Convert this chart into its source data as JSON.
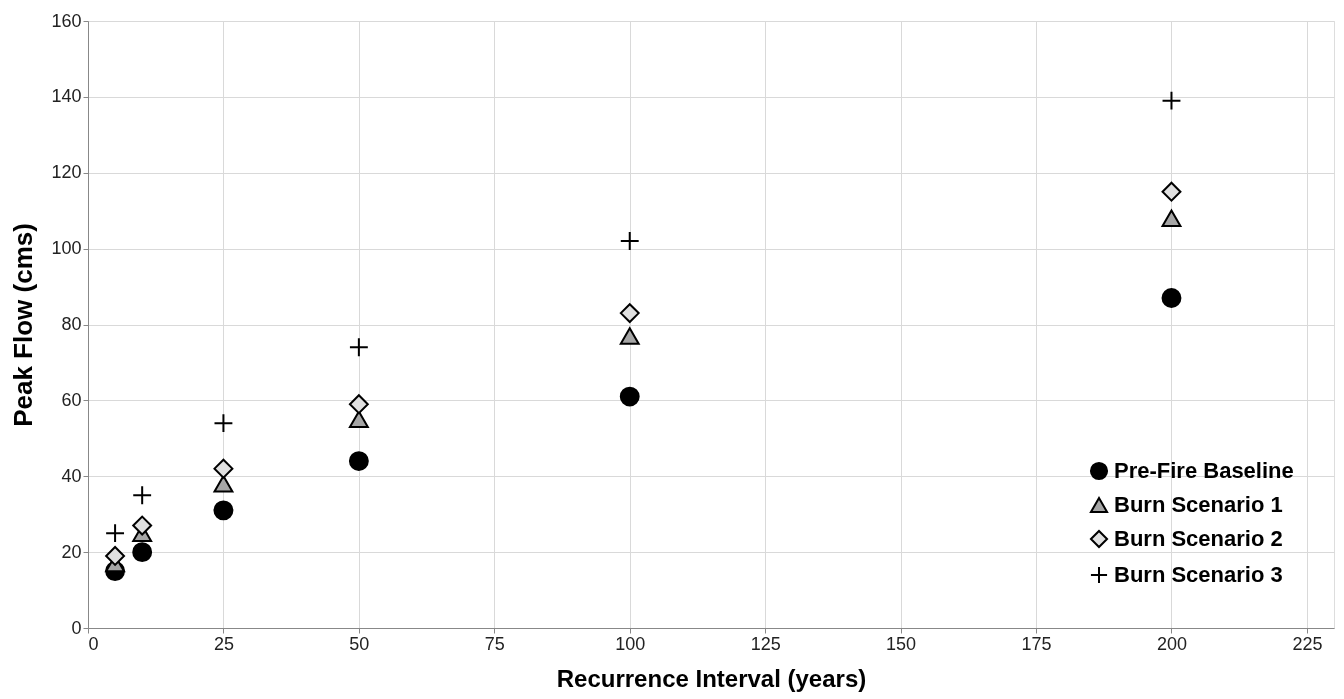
{
  "chart_data": {
    "type": "scatter",
    "xlabel": "Recurrence Interval (years)",
    "ylabel": "Peak Flow (cms)",
    "x": [
      5,
      10,
      25,
      50,
      100,
      200
    ],
    "series": [
      {
        "name": "Pre-Fire Baseline",
        "color": "#000000",
        "marker": "circle",
        "values": [
          15,
          20,
          31,
          44,
          61,
          87
        ]
      },
      {
        "name": "Burn Scenario 1",
        "color": "#a6a6a6",
        "marker": "triangle",
        "values": [
          17,
          25,
          38,
          55,
          77,
          108
        ]
      },
      {
        "name": "Burn Scenario 2",
        "color": "#e0e0e0",
        "marker": "diamond",
        "values": [
          19,
          27,
          42,
          59,
          83,
          115
        ]
      },
      {
        "name": "Burn Scenario 3",
        "color": "#000000",
        "marker": "cross",
        "values": [
          25,
          35,
          54,
          74,
          102,
          139
        ]
      }
    ],
    "xlim": [
      0,
      230
    ],
    "xticks": [
      0,
      25,
      50,
      75,
      100,
      125,
      150,
      175,
      200,
      225
    ],
    "ylim": [
      0,
      160
    ],
    "yticks": [
      0,
      20,
      40,
      60,
      80,
      100,
      120,
      140,
      160
    ],
    "grid": true,
    "legend": "bottom right"
  }
}
